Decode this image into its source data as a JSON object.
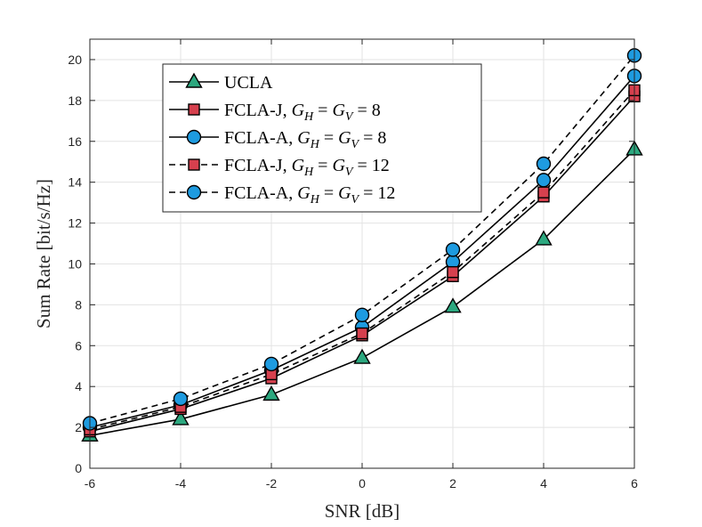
{
  "chart_data": {
    "type": "line",
    "xlabel": "SNR [dB]",
    "ylabel": "Sum Rate [bit/s/Hz]",
    "xlim": [
      -6,
      6
    ],
    "ylim": [
      0,
      21
    ],
    "grid": true,
    "legend_position": "top-left",
    "x": [
      -6,
      -4,
      -2,
      0,
      2,
      4,
      6
    ],
    "xticks": [
      -6,
      -4,
      -2,
      0,
      2,
      4,
      6
    ],
    "yticks": [
      0,
      2,
      4,
      6,
      8,
      10,
      12,
      14,
      16,
      18,
      20
    ],
    "series": [
      {
        "name": "UCLA",
        "legend": {
          "prefix": "UCLA",
          "math": ""
        },
        "values": [
          1.6,
          2.4,
          3.6,
          5.4,
          7.9,
          11.2,
          15.6
        ],
        "marker": "triangle",
        "linestyle": "solid",
        "marker_color": "#2ca87f"
      },
      {
        "name": "FCLA-J, G_H = G_V = 8",
        "legend": {
          "prefix": "FCLA-J, ",
          "math": "8"
        },
        "values": [
          1.8,
          2.9,
          4.4,
          6.5,
          9.4,
          13.3,
          18.2
        ],
        "marker": "square",
        "linestyle": "solid",
        "marker_color": "#d6404e"
      },
      {
        "name": "FCLA-A, G_H = G_V = 8",
        "legend": {
          "prefix": "FCLA-A, ",
          "math": "8"
        },
        "values": [
          2.0,
          3.1,
          4.8,
          6.9,
          10.1,
          14.1,
          19.2
        ],
        "marker": "circle",
        "linestyle": "solid",
        "marker_color": "#1e9be0"
      },
      {
        "name": "FCLA-J, G_H = G_V = 12",
        "legend": {
          "prefix": "FCLA-J, ",
          "math": "12"
        },
        "values": [
          1.9,
          3.0,
          4.6,
          6.6,
          9.6,
          13.5,
          18.5
        ],
        "marker": "square",
        "linestyle": "dashed",
        "marker_color": "#d6404e"
      },
      {
        "name": "FCLA-A, G_H = G_V = 12",
        "legend": {
          "prefix": "FCLA-A, ",
          "math": "12"
        },
        "values": [
          2.2,
          3.4,
          5.1,
          7.5,
          10.7,
          14.9,
          20.2
        ],
        "marker": "circle",
        "linestyle": "dashed",
        "marker_color": "#1e9be0"
      }
    ]
  }
}
